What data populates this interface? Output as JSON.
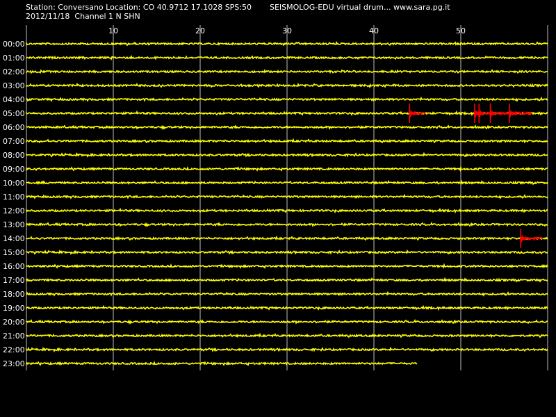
{
  "header": {
    "station_line": "Station: Conversano Location: CO 40.9712 17.1028 SPS:50",
    "program_line": "SEISMOLOG-EDU virtual drum... www.sara.pg.it",
    "date_line": "2012/11/18  Channel 1 N SHN"
  },
  "colors": {
    "background": "#000000",
    "trace": "#ffff00",
    "event": "#ff0000",
    "grid": "#c0c0c0",
    "text": "#ffffff"
  },
  "chart_data": {
    "type": "line",
    "title": "",
    "xlabel": "",
    "ylabel": "",
    "x_unit": "minutes",
    "xlim": [
      0,
      60
    ],
    "x_ticks": [
      10,
      20,
      30,
      40,
      50
    ],
    "x_tick_labels": [
      "10",
      "20",
      "30",
      "40",
      "50"
    ],
    "grid": "vertical",
    "rows": [
      {
        "label": "00:00",
        "end_minute": 60
      },
      {
        "label": "01:00",
        "end_minute": 60
      },
      {
        "label": "02:00",
        "end_minute": 60
      },
      {
        "label": "03:00",
        "end_minute": 60
      },
      {
        "label": "04:00",
        "end_minute": 60
      },
      {
        "label": "05:00",
        "end_minute": 60
      },
      {
        "label": "06:00",
        "end_minute": 60
      },
      {
        "label": "07:00",
        "end_minute": 60
      },
      {
        "label": "08:00",
        "end_minute": 60
      },
      {
        "label": "09:00",
        "end_minute": 60
      },
      {
        "label": "10:00",
        "end_minute": 60
      },
      {
        "label": "11:00",
        "end_minute": 60
      },
      {
        "label": "12:00",
        "end_minute": 60
      },
      {
        "label": "13:00",
        "end_minute": 60
      },
      {
        "label": "14:00",
        "end_minute": 60
      },
      {
        "label": "15:00",
        "end_minute": 60
      },
      {
        "label": "16:00",
        "end_minute": 60
      },
      {
        "label": "17:00",
        "end_minute": 60
      },
      {
        "label": "18:00",
        "end_minute": 60
      },
      {
        "label": "19:00",
        "end_minute": 60
      },
      {
        "label": "20:00",
        "end_minute": 60
      },
      {
        "label": "21:00",
        "end_minute": 60
      },
      {
        "label": "22:00",
        "end_minute": 60
      },
      {
        "label": "23:00",
        "end_minute": 45
      }
    ],
    "events": [
      {
        "row": "05:00",
        "start_minute": 44.1,
        "end_minute": 46.0,
        "peak_minutes": [
          44.1
        ]
      },
      {
        "row": "05:00",
        "start_minute": 51.6,
        "end_minute": 58.2,
        "peak_minutes": [
          51.6,
          52.1,
          53.4,
          55.6
        ]
      },
      {
        "row": "14:00",
        "start_minute": 56.9,
        "end_minute": 59.4,
        "peak_minutes": [
          56.9
        ]
      }
    ]
  }
}
